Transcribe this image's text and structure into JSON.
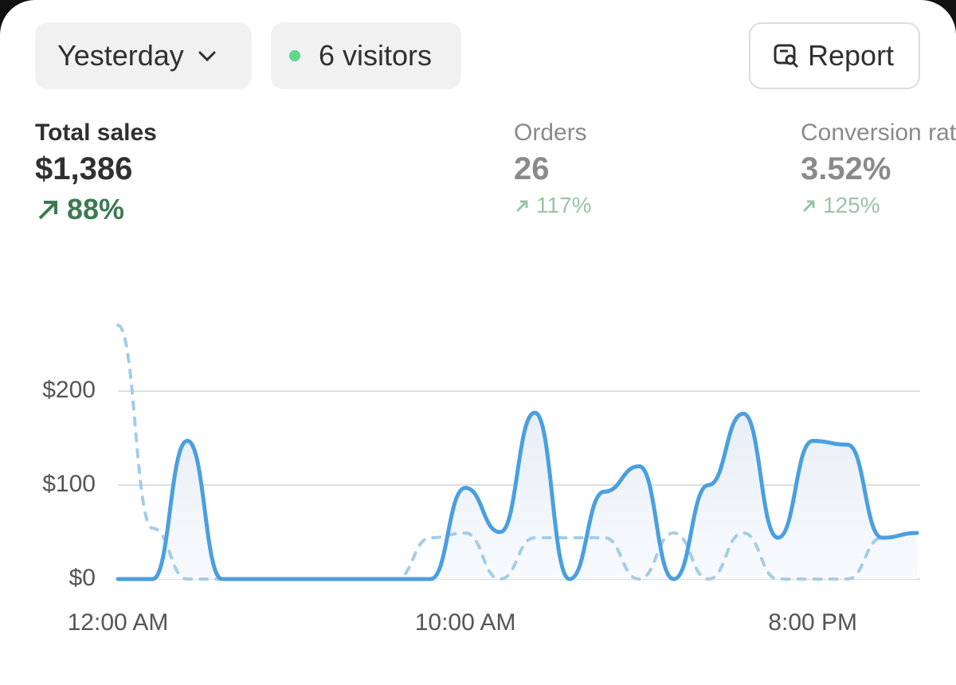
{
  "header": {
    "period": "Yesterday",
    "visitors": "6 visitors",
    "report": "Report"
  },
  "metrics": [
    {
      "label": "Total sales",
      "value": "$1,386",
      "change": "88%"
    },
    {
      "label": "Orders",
      "value": "26",
      "change": "117%"
    },
    {
      "label": "Conversion rate",
      "value": "3.52%",
      "change": "125%"
    }
  ],
  "chart_data": {
    "type": "line",
    "categories": [
      "12:00 AM",
      null,
      null,
      null,
      null,
      null,
      null,
      null,
      null,
      null,
      "10:00 AM",
      null,
      null,
      null,
      null,
      null,
      null,
      null,
      null,
      null,
      "8:00 PM",
      null,
      null,
      null
    ],
    "series": [
      {
        "color": "#4a9fe0",
        "style": "solid",
        "fill": true,
        "values": [
          0,
          0,
          147,
          0,
          0,
          0,
          0,
          0,
          0,
          0,
          97,
          50,
          177,
          0,
          93,
          120,
          0,
          100,
          176,
          44,
          147,
          143,
          44,
          49
        ]
      },
      {
        "color": "#a4cde6",
        "style": "dashed",
        "values": [
          270,
          54,
          0,
          0,
          0,
          0,
          0,
          0,
          0,
          44,
          49,
          0,
          44,
          44,
          44,
          0,
          49,
          0,
          49,
          0,
          0,
          0,
          44,
          49
        ]
      }
    ],
    "ylim": [
      0,
      270
    ],
    "yticks": [
      {
        "value": 0,
        "label": "$0"
      },
      {
        "value": 100,
        "label": "$100"
      },
      {
        "value": 200,
        "label": "$200"
      }
    ],
    "grid": true
  }
}
